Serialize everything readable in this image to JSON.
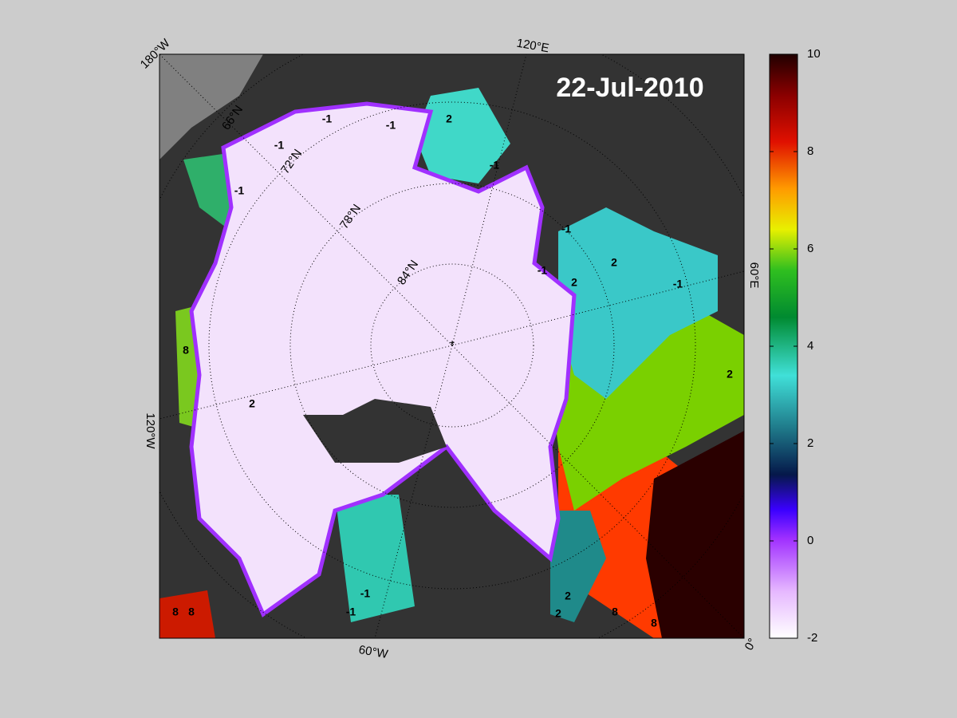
{
  "title": "22-Jul-2010",
  "meridian_labels": [
    "180°W",
    "120°E",
    "60°E",
    "0°",
    "60°W",
    "120°W"
  ],
  "parallel_labels": [
    "66°N",
    "72°N",
    "78°N",
    "84°N"
  ],
  "contour_labels": [
    -1,
    -1,
    -1,
    -1,
    -1,
    -1,
    -1,
    -1,
    2,
    2,
    2,
    2,
    2,
    8,
    8,
    8,
    8,
    8,
    -1,
    -1,
    2,
    2
  ],
  "colorbar": {
    "lim": [
      -2,
      10
    ],
    "ticks": [
      -2,
      0,
      2,
      4,
      6,
      8,
      10
    ]
  }
}
